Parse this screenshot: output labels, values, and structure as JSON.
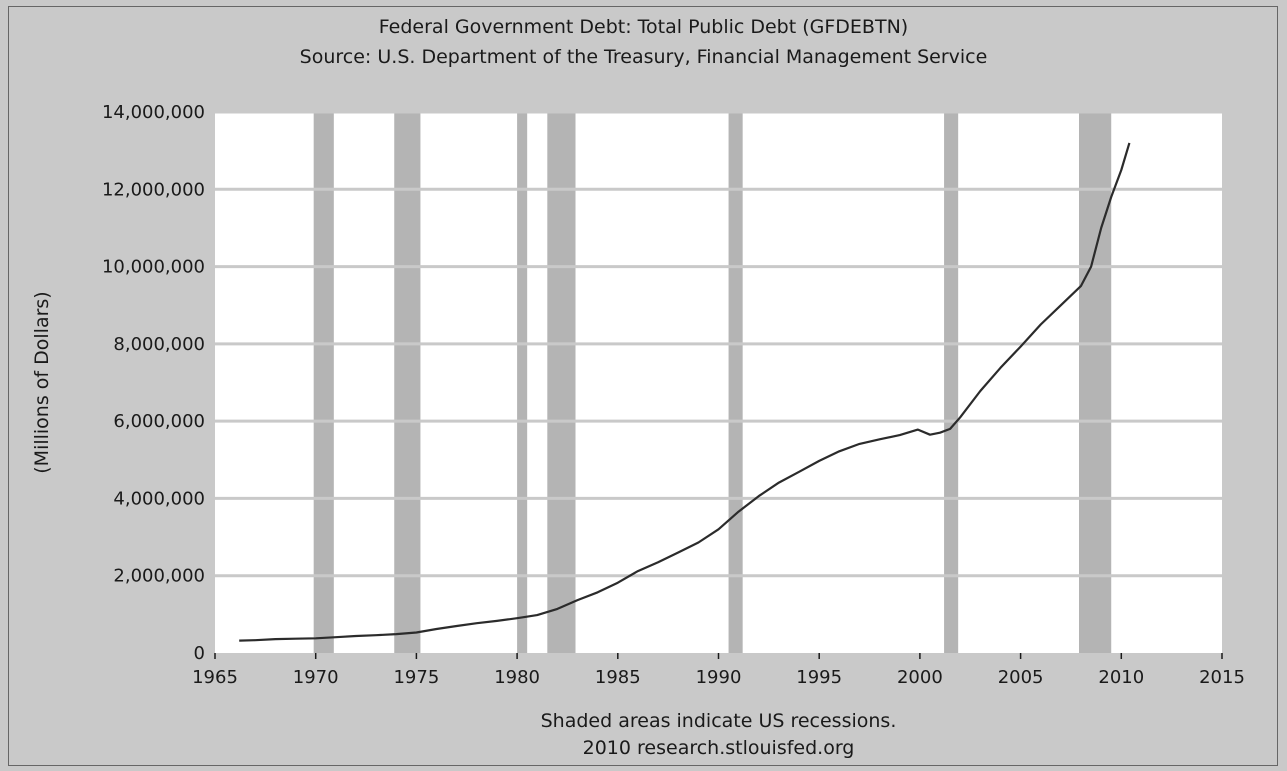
{
  "colors": {
    "background": "#c9c9c9",
    "plot_area": "#ffffff",
    "gridline": "#c9c9c9",
    "recession_band": "#b4b4b4",
    "series_line": "#2b2b2b",
    "text": "#1a1a1a"
  },
  "chart_data": {
    "type": "line",
    "title": "Federal Government Debt: Total Public Debt (GFDEBTN)",
    "subtitle": "Source: U.S. Department of the Treasury, Financial Management Service",
    "xlabel": "",
    "ylabel": "(Millions of Dollars)",
    "xlim": [
      1965,
      2015
    ],
    "ylim": [
      0,
      14000000
    ],
    "grid": true,
    "x_ticks": [
      1965,
      1970,
      1975,
      1980,
      1985,
      1990,
      1995,
      2000,
      2005,
      2010,
      2015
    ],
    "x_tick_labels": [
      "1965",
      "1970",
      "1975",
      "1980",
      "1985",
      "1990",
      "1995",
      "2000",
      "2005",
      "2010",
      "2015"
    ],
    "y_ticks": [
      0,
      2000000,
      4000000,
      6000000,
      8000000,
      10000000,
      12000000,
      14000000
    ],
    "y_tick_labels": [
      "0",
      "2,000,000",
      "4,000,000",
      "6,000,000",
      "8,000,000",
      "10,000,000",
      "12,000,000",
      "14,000,000"
    ],
    "recessions": [
      [
        1969.9,
        1970.9
      ],
      [
        1973.9,
        1975.2
      ],
      [
        1980.0,
        1980.5
      ],
      [
        1981.5,
        1982.9
      ],
      [
        1990.5,
        1991.2
      ],
      [
        2001.2,
        2001.9
      ],
      [
        2007.9,
        2009.5
      ]
    ],
    "series": [
      {
        "x": [
          1966.2,
          1967,
          1968,
          1969,
          1970,
          1971,
          1972,
          1973,
          1974,
          1975,
          1976,
          1977,
          1978,
          1979,
          1980,
          1981,
          1982,
          1983,
          1984,
          1985,
          1986,
          1987,
          1988,
          1989,
          1990,
          1991,
          1992,
          1993,
          1994,
          1995,
          1996,
          1997,
          1998,
          1999,
          1999.9,
          2000.5,
          2001,
          2001.5,
          2002,
          2003,
          2004,
          2005,
          2006,
          2007,
          2008,
          2008.5,
          2009,
          2009.5,
          2010,
          2010.4
        ],
        "values": [
          320000,
          330000,
          360000,
          370000,
          380000,
          410000,
          440000,
          460000,
          490000,
          530000,
          620000,
          700000,
          770000,
          830000,
          900000,
          980000,
          1140000,
          1370000,
          1570000,
          1820000,
          2120000,
          2350000,
          2600000,
          2860000,
          3200000,
          3660000,
          4060000,
          4410000,
          4690000,
          4970000,
          5220000,
          5410000,
          5530000,
          5640000,
          5780000,
          5650000,
          5700000,
          5800000,
          6100000,
          6780000,
          7380000,
          7930000,
          8500000,
          9000000,
          9500000,
          10000000,
          11000000,
          11800000,
          12500000,
          13200000
        ]
      }
    ],
    "footer_lines": [
      "Shaded areas indicate US recessions.",
      "2010 research.stlouisfed.org"
    ]
  }
}
